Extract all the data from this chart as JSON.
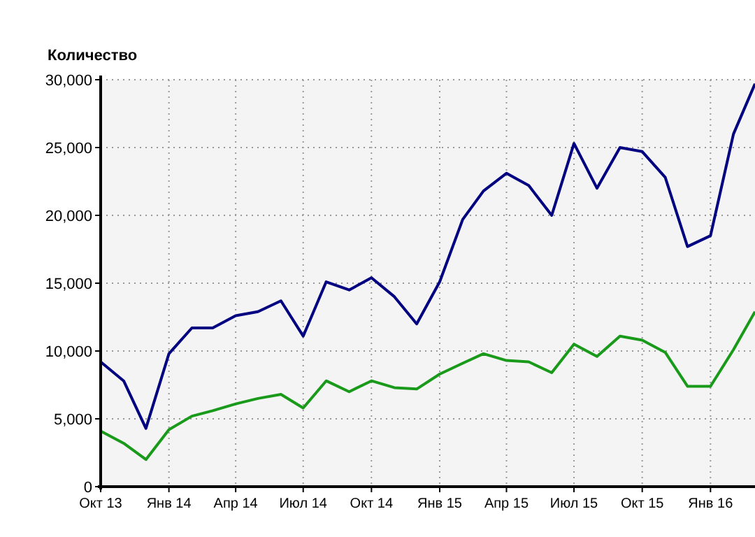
{
  "chart_data": {
    "type": "line",
    "ylabel": "Количество",
    "x": [
      "2013-10",
      "2013-11",
      "2013-12",
      "2014-01",
      "2014-02",
      "2014-03",
      "2014-04",
      "2014-05",
      "2014-06",
      "2014-07",
      "2014-08",
      "2014-09",
      "2014-10",
      "2014-11",
      "2014-12",
      "2015-01",
      "2015-02",
      "2015-03",
      "2015-04",
      "2015-05",
      "2015-06",
      "2015-07",
      "2015-08",
      "2015-09",
      "2015-10",
      "2015-11",
      "2015-12",
      "2016-01",
      "2016-02",
      "2016-03"
    ],
    "series": [
      {
        "color": "#000080",
        "values": [
          9200,
          7800,
          4300,
          9800,
          11700,
          11700,
          12600,
          12900,
          13700,
          11100,
          15100,
          14500,
          15400,
          14000,
          12000,
          15100,
          19700,
          21800,
          23100,
          22200,
          20000,
          25300,
          22000,
          25000,
          24700,
          22800,
          17700,
          18500,
          26000,
          29700
        ]
      },
      {
        "color": "#1a9a1a",
        "values": [
          4100,
          3200,
          2000,
          4200,
          5200,
          5600,
          6100,
          6500,
          6800,
          5800,
          7800,
          7000,
          7800,
          7300,
          7200,
          8300,
          9100,
          9800,
          9300,
          9200,
          8400,
          10500,
          9600,
          11100,
          10800,
          9900,
          7400,
          7400,
          10100,
          12900
        ]
      }
    ],
    "xlim": [
      "2013-10",
      "2016-03"
    ],
    "xticks": [
      {
        "value": "2013-10",
        "label": "Окт 13"
      },
      {
        "value": "2014-01",
        "label": "Янв 14"
      },
      {
        "value": "2014-04",
        "label": "Апр 14"
      },
      {
        "value": "2014-07",
        "label": "Июл 14"
      },
      {
        "value": "2014-10",
        "label": "Окт 14"
      },
      {
        "value": "2015-01",
        "label": "Янв 15"
      },
      {
        "value": "2015-04",
        "label": "Апр 15"
      },
      {
        "value": "2015-07",
        "label": "Июл 15"
      },
      {
        "value": "2015-10",
        "label": "Окт 15"
      },
      {
        "value": "2016-01",
        "label": "Янв 16"
      }
    ],
    "ylim": [
      0,
      30000
    ],
    "yticks": [
      {
        "value": 0,
        "label": "0"
      },
      {
        "value": 5000,
        "label": "5,000"
      },
      {
        "value": 10000,
        "label": "10,000"
      },
      {
        "value": 15000,
        "label": "15,000"
      },
      {
        "value": 20000,
        "label": "20,000"
      },
      {
        "value": 25000,
        "label": "25,000"
      },
      {
        "value": 30000,
        "label": "30,000"
      }
    ],
    "grid": true,
    "marker": "none",
    "line_style": "solid"
  }
}
